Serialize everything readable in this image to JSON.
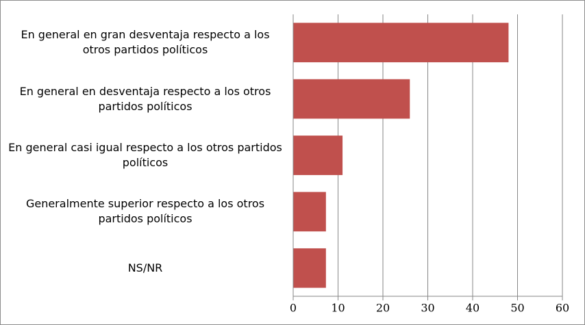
{
  "chart_data": {
    "type": "barh",
    "categories": [
      "En general en gran desventaja respecto a los otros partidos políticos",
      "En general en desventaja respecto a los otros partidos políticos",
      "En general casi igual respecto a los otros partidos políticos",
      "Generalmente superior respecto a los otros partidos políticos",
      "NS/NR"
    ],
    "values": [
      48,
      26,
      11,
      7.3,
      7.3
    ],
    "color": "#c0504d",
    "xlim": [
      0,
      60
    ],
    "xticks": [
      0,
      10,
      20,
      30,
      40,
      50,
      60
    ],
    "grid": true
  }
}
